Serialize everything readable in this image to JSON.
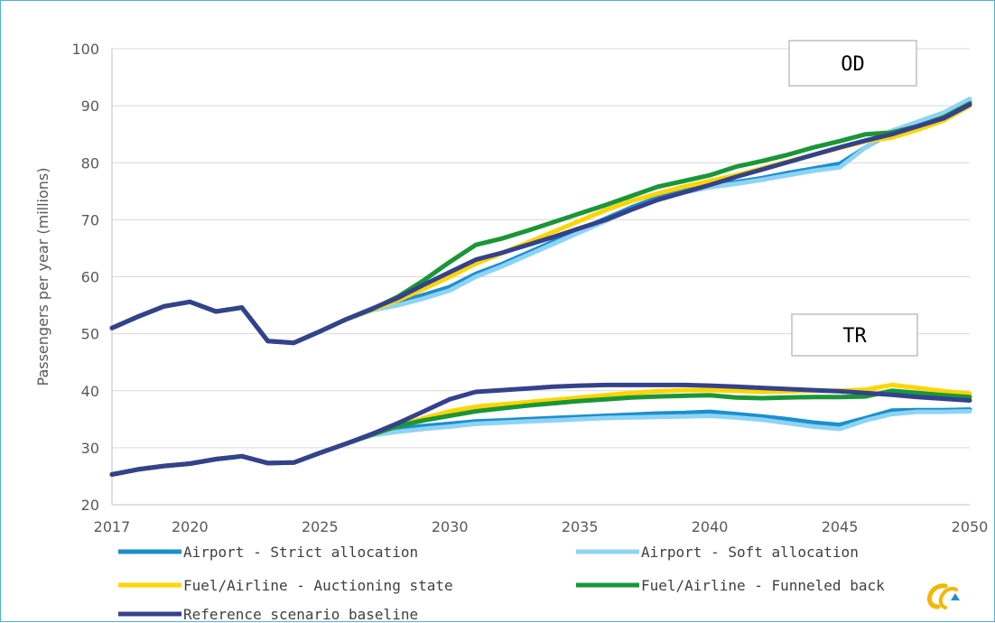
{
  "chart_data": {
    "type": "line",
    "title": "",
    "xlabel": "",
    "ylabel": "Passengers per year (millions)",
    "ylim": [
      20,
      100
    ],
    "yticks": [
      20,
      30,
      40,
      50,
      60,
      70,
      80,
      90,
      100
    ],
    "xlim": [
      2017,
      2050
    ],
    "xticks": [
      2017,
      2020,
      2025,
      2030,
      2035,
      2040,
      2045,
      2050
    ],
    "grid": "horizontal",
    "legend_position": "bottom",
    "annotations": [
      {
        "text": "OD",
        "anchor": "upper group"
      },
      {
        "text": "TR",
        "anchor": "lower group"
      }
    ],
    "x": [
      2017,
      2018,
      2019,
      2020,
      2021,
      2022,
      2023,
      2024,
      2025,
      2026,
      2027,
      2028,
      2029,
      2030,
      2031,
      2032,
      2033,
      2034,
      2035,
      2036,
      2037,
      2038,
      2039,
      2040,
      2041,
      2042,
      2043,
      2044,
      2045,
      2046,
      2047,
      2048,
      2049,
      2050
    ],
    "series": [
      {
        "name": "Airport - Strict allocation",
        "color": "#1b8fce",
        "groups": {
          "OD": [
            51,
            53,
            54.8,
            55.6,
            53.9,
            54.6,
            48.7,
            48.4,
            50.4,
            52.5,
            54.2,
            55.5,
            56.8,
            58.2,
            60.5,
            62.2,
            64.2,
            66.2,
            68.2,
            70.2,
            72.2,
            73.9,
            75.2,
            76,
            76.6,
            77.3,
            78.2,
            79,
            79.8,
            82.7,
            85.4,
            86.9,
            88.5,
            90.6
          ],
          "TR": [
            25.3,
            26.2,
            26.8,
            27.2,
            28,
            28.5,
            27.3,
            27.4,
            29.1,
            30.7,
            32.4,
            33.3,
            33.8,
            34.2,
            34.6,
            34.8,
            35,
            35.2,
            35.4,
            35.6,
            35.8,
            36,
            36.1,
            36.3,
            35.9,
            35.5,
            35,
            34.4,
            34,
            35.2,
            36.5,
            36.6,
            36.6,
            36.7
          ]
        }
      },
      {
        "name": "Airport - Soft allocation",
        "color": "#8fd3f4",
        "groups": {
          "OD": [
            51,
            53,
            54.8,
            55.6,
            53.9,
            54.6,
            48.7,
            48.4,
            50.4,
            52.5,
            54.1,
            55,
            56.2,
            57.6,
            60,
            61.8,
            63.8,
            65.8,
            67.8,
            69.8,
            71.8,
            73.5,
            74.8,
            75.7,
            76.3,
            77,
            77.8,
            78.6,
            79.2,
            82.7,
            85.6,
            87.2,
            88.8,
            91.2
          ],
          "TR": [
            25.3,
            26.2,
            26.8,
            27.2,
            28,
            28.5,
            27.3,
            27.4,
            29.1,
            30.7,
            32.2,
            32.8,
            33.3,
            33.7,
            34.2,
            34.4,
            34.6,
            34.8,
            35,
            35.2,
            35.3,
            35.4,
            35.5,
            35.6,
            35.3,
            34.9,
            34.3,
            33.7,
            33.3,
            34.8,
            35.9,
            36.3,
            36.3,
            36.4
          ]
        }
      },
      {
        "name": "Fuel/Airline - Auctioning state",
        "color": "#ffd500",
        "groups": {
          "OD": [
            51,
            53,
            54.8,
            55.6,
            53.9,
            54.6,
            48.7,
            48.4,
            50.4,
            52.5,
            54.2,
            55.9,
            57.9,
            60,
            62.3,
            64.1,
            66,
            67.9,
            69.8,
            71.7,
            73.3,
            74.6,
            75.8,
            76.8,
            77.8,
            79,
            80.2,
            81.4,
            82.6,
            83.8,
            84.4,
            85.8,
            87.4,
            90
          ],
          "TR": [
            25.3,
            26.2,
            26.8,
            27.2,
            28,
            28.5,
            27.3,
            27.4,
            29.1,
            30.7,
            32.3,
            33.8,
            35.2,
            36.4,
            37.2,
            37.6,
            38,
            38.4,
            38.8,
            39.2,
            39.6,
            39.9,
            40.1,
            40.1,
            40,
            39.8,
            39.9,
            40,
            40,
            40.2,
            41,
            40.5,
            39.9,
            39.5
          ]
        }
      },
      {
        "name": "Fuel/Airline - Funneled back",
        "color": "#1a9639",
        "groups": {
          "OD": [
            51,
            53,
            54.8,
            55.6,
            53.9,
            54.6,
            48.7,
            48.4,
            50.4,
            52.5,
            54.3,
            56.5,
            59.4,
            62.6,
            65.6,
            66.7,
            68.1,
            69.6,
            71.1,
            72.6,
            74.2,
            75.8,
            76.8,
            77.8,
            79.3,
            80.3,
            81.4,
            82.7,
            83.8,
            85,
            85.3,
            86.4,
            88,
            90.4
          ],
          "TR": [
            25.3,
            26.2,
            26.8,
            27.2,
            28,
            28.5,
            27.3,
            27.4,
            29.1,
            30.7,
            32.3,
            33.8,
            34.8,
            35.6,
            36.4,
            36.9,
            37.4,
            37.8,
            38.2,
            38.5,
            38.8,
            39,
            39.1,
            39.2,
            38.8,
            38.7,
            38.8,
            38.9,
            38.9,
            39,
            40,
            39.6,
            39.2,
            38.9
          ]
        }
      },
      {
        "name": "Reference scenario baseline",
        "color": "#34418c",
        "groups": {
          "OD": [
            51,
            53,
            54.8,
            55.6,
            53.9,
            54.6,
            48.7,
            48.4,
            50.4,
            52.5,
            54.4,
            56.3,
            58.6,
            60.8,
            63,
            64.2,
            65.6,
            67,
            68.5,
            70,
            71.8,
            73.5,
            74.8,
            76.1,
            77.5,
            78.8,
            80.1,
            81.4,
            82.7,
            83.9,
            85,
            86.4,
            87.8,
            90.2
          ],
          "TR": [
            25.3,
            26.2,
            26.8,
            27.2,
            28,
            28.5,
            27.3,
            27.4,
            29.1,
            30.7,
            32.4,
            34.3,
            36.4,
            38.5,
            39.8,
            40.1,
            40.4,
            40.7,
            40.9,
            41,
            41,
            41,
            41,
            40.9,
            40.7,
            40.5,
            40.3,
            40.1,
            39.9,
            39.6,
            39.3,
            38.9,
            38.6,
            38.3
          ]
        }
      }
    ]
  },
  "logo": {
    "icon": "logo-icon"
  }
}
